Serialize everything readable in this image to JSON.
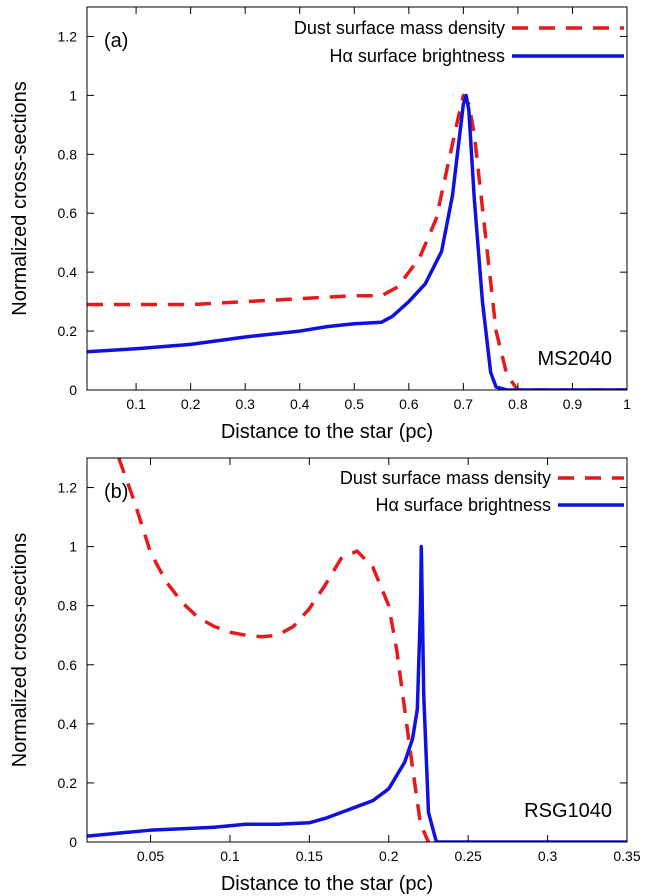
{
  "chart_data": [
    {
      "type": "line",
      "panel_label": "(a)",
      "model_label": "MS2040",
      "xlabel": "Distance to the star (pc)",
      "ylabel": "Normalized cross-sections",
      "xlim": [
        0.01,
        1.0
      ],
      "ylim": [
        0,
        1.3
      ],
      "x_ticks": [
        0.1,
        0.2,
        0.3,
        0.4,
        0.5,
        0.6,
        0.7,
        0.8,
        0.9,
        1
      ],
      "x_tick_labels": [
        "0.1",
        "0.2",
        "0.3",
        "0.4",
        "0.5",
        "0.6",
        "0.7",
        "0.8",
        "0.9",
        "1"
      ],
      "y_ticks": [
        0,
        0.2,
        0.4,
        0.6,
        0.8,
        1,
        1.2
      ],
      "y_tick_labels": [
        "0",
        "0.2",
        "0.4",
        "0.6",
        "0.8",
        "1",
        "1.2"
      ],
      "legend_position": "top-right",
      "grid": false,
      "series": [
        {
          "name": "Dust surface mass density",
          "color": "#e41a1c",
          "style": "dashed",
          "x": [
            0.01,
            0.1,
            0.2,
            0.3,
            0.4,
            0.5,
            0.55,
            0.58,
            0.62,
            0.65,
            0.67,
            0.69,
            0.7,
            0.71,
            0.72,
            0.73,
            0.745,
            0.76,
            0.78,
            0.8,
            0.9,
            1.0
          ],
          "y": [
            0.29,
            0.29,
            0.29,
            0.3,
            0.31,
            0.32,
            0.32,
            0.35,
            0.45,
            0.58,
            0.75,
            0.92,
            1.0,
            0.97,
            0.87,
            0.7,
            0.45,
            0.2,
            0.05,
            0.0,
            0.0,
            0.0
          ]
        },
        {
          "name": "Hα surface brightness",
          "color": "#1010e0",
          "style": "solid",
          "x": [
            0.01,
            0.1,
            0.2,
            0.3,
            0.4,
            0.45,
            0.5,
            0.55,
            0.57,
            0.6,
            0.63,
            0.66,
            0.68,
            0.7,
            0.705,
            0.71,
            0.72,
            0.735,
            0.75,
            0.76,
            0.78,
            0.8,
            0.9,
            1.0
          ],
          "y": [
            0.13,
            0.14,
            0.155,
            0.18,
            0.2,
            0.215,
            0.225,
            0.23,
            0.25,
            0.3,
            0.36,
            0.47,
            0.66,
            0.97,
            1.0,
            0.95,
            0.65,
            0.3,
            0.06,
            0.01,
            0.0,
            0.0,
            0.0,
            0.0
          ]
        }
      ]
    },
    {
      "type": "line",
      "panel_label": "(b)",
      "model_label": "RSG1040",
      "xlabel": "Distance to the star (pc)",
      "ylabel": "Normalized cross-sections",
      "xlim": [
        0.01,
        0.35
      ],
      "ylim": [
        0,
        1.3
      ],
      "x_ticks": [
        0.05,
        0.1,
        0.15,
        0.2,
        0.25,
        0.3,
        0.35
      ],
      "x_tick_labels": [
        "0.05",
        "0.1",
        "0.15",
        "0.2",
        "0.25",
        "0.3",
        "0.35"
      ],
      "y_ticks": [
        0,
        0.2,
        0.4,
        0.6,
        0.8,
        1,
        1.2
      ],
      "y_tick_labels": [
        "0",
        "0.2",
        "0.4",
        "0.6",
        "0.8",
        "1",
        "1.2"
      ],
      "legend_position": "top-right",
      "grid": false,
      "series": [
        {
          "name": "Dust surface mass density",
          "color": "#e41a1c",
          "style": "dashed",
          "x": [
            0.03,
            0.04,
            0.05,
            0.06,
            0.07,
            0.08,
            0.09,
            0.1,
            0.11,
            0.12,
            0.13,
            0.14,
            0.15,
            0.16,
            0.17,
            0.18,
            0.19,
            0.2,
            0.205,
            0.21,
            0.215,
            0.22,
            0.225
          ],
          "y": [
            1.3,
            1.15,
            0.98,
            0.88,
            0.81,
            0.76,
            0.73,
            0.71,
            0.7,
            0.695,
            0.7,
            0.73,
            0.79,
            0.87,
            0.96,
            0.985,
            0.93,
            0.8,
            0.65,
            0.45,
            0.25,
            0.06,
            0.0
          ]
        },
        {
          "name": "Hα surface brightness",
          "color": "#1010e0",
          "style": "solid",
          "x": [
            0.01,
            0.03,
            0.05,
            0.07,
            0.09,
            0.11,
            0.13,
            0.15,
            0.16,
            0.17,
            0.18,
            0.19,
            0.2,
            0.21,
            0.215,
            0.218,
            0.22,
            0.2205,
            0.222,
            0.225,
            0.23,
            0.24,
            0.3,
            0.35
          ],
          "y": [
            0.02,
            0.03,
            0.04,
            0.045,
            0.05,
            0.06,
            0.06,
            0.065,
            0.08,
            0.1,
            0.12,
            0.14,
            0.18,
            0.27,
            0.35,
            0.45,
            0.8,
            1.0,
            0.5,
            0.1,
            0.0,
            0.0,
            0.0,
            0.0
          ]
        }
      ]
    }
  ]
}
